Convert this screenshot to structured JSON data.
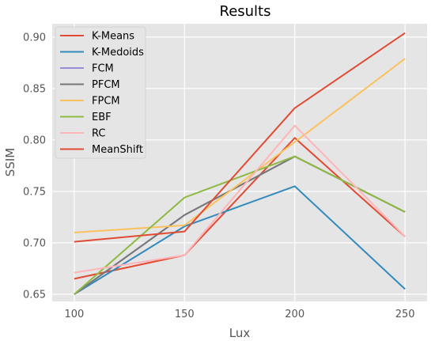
{
  "chart_data": {
    "type": "line",
    "title": "Results",
    "xlabel": "Lux",
    "ylabel": "SSIM",
    "x": [
      100,
      150,
      200,
      250
    ],
    "xlim": [
      90,
      260
    ],
    "ylim": [
      0.643,
      0.913
    ],
    "xticks": [
      "100",
      "150",
      "200",
      "250"
    ],
    "yticks": [
      "0.65",
      "0.70",
      "0.75",
      "0.80",
      "0.85",
      "0.90"
    ],
    "grid": true,
    "legend_position": "top-left",
    "background": "#e5e5e5",
    "series": [
      {
        "name": "K-Means",
        "color": "#e24a33",
        "values": [
          0.665,
          0.688,
          0.802,
          0.706
        ]
      },
      {
        "name": "K-Medoids",
        "color": "#348abd",
        "values": [
          0.65,
          0.716,
          0.755,
          0.655
        ]
      },
      {
        "name": "FCM",
        "color": "#988ed5",
        "values": [
          0.65,
          0.727,
          0.784,
          0.73
        ]
      },
      {
        "name": "PFCM",
        "color": "#777777",
        "values": [
          0.65,
          0.727,
          0.784,
          0.73
        ]
      },
      {
        "name": "FPCM",
        "color": "#fbc15e",
        "values": [
          0.71,
          0.717,
          0.798,
          0.879
        ]
      },
      {
        "name": "EBF",
        "color": "#8eba42",
        "values": [
          0.65,
          0.744,
          0.784,
          0.73
        ]
      },
      {
        "name": "RC",
        "color": "#ffb5b8",
        "values": [
          0.671,
          0.688,
          0.814,
          0.706
        ]
      },
      {
        "name": "MeanShift",
        "color": "#e24a33",
        "values": [
          0.701,
          0.711,
          0.831,
          0.904
        ]
      }
    ]
  }
}
